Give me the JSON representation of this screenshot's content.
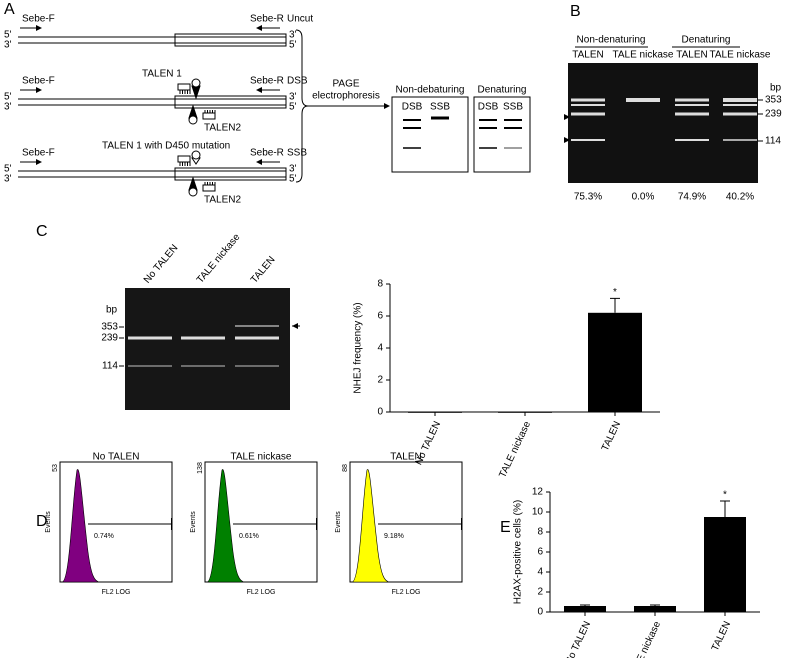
{
  "panel_labels": [
    "A",
    "B",
    "C",
    "D",
    "E"
  ],
  "panel_a": {
    "rows": [
      {
        "left_primer": "Sebe-F",
        "right_primer": "Sebe-R",
        "state": "Uncut",
        "ends": [
          "5'",
          "3'",
          "3'",
          "5'"
        ]
      },
      {
        "left_primer": "Sebe-F",
        "right_primer": "Sebe-R",
        "state": "DSB",
        "ends": [
          "5'",
          "3'",
          "3'",
          "5'"
        ],
        "talen1": "TALEN 1",
        "talen2": "TALEN2"
      },
      {
        "left_primer": "Sebe-F",
        "right_primer": "Sebe-R",
        "state": "SSB",
        "ends": [
          "5'",
          "3'",
          "3'",
          "5'"
        ],
        "talen1": "TALEN 1 with D450 mutation",
        "talen2": "TALEN2"
      }
    ],
    "step": [
      "PAGE",
      "electrophoresis"
    ],
    "gels": [
      {
        "title": "Non-debaturing",
        "lanes": [
          "DSB",
          "SSB"
        ]
      },
      {
        "title": "Denaturing",
        "lanes": [
          "DSB",
          "SSB"
        ]
      }
    ]
  },
  "panel_b": {
    "groups": [
      "Non-denaturing",
      "Denaturing"
    ],
    "lanes": [
      "TALEN",
      "TALE nickase",
      "TALEN",
      "TALE nickase"
    ],
    "size_unit": "bp",
    "sizes": [
      "353",
      "239",
      "114"
    ],
    "percentages": [
      "75.3%",
      "0.0%",
      "74.9%",
      "40.2%"
    ]
  },
  "panel_c_gel": {
    "lanes": [
      "No TALEN",
      "TALE nickase",
      "TALEN"
    ],
    "size_unit": "bp",
    "sizes": [
      "353",
      "239",
      "114"
    ]
  },
  "panel_d": {
    "y_label": "Events",
    "x_label": "FL2 LOG",
    "plots": [
      {
        "title": "No TALEN",
        "y_max": "53",
        "percent": "0.74%",
        "color": "#800080"
      },
      {
        "title": "TALE nickase",
        "y_max": "138",
        "percent": "0.61%",
        "color": "#008000"
      },
      {
        "title": "TALEN",
        "y_max": "88",
        "percent": "9.18%",
        "color": "#ffff00"
      }
    ]
  },
  "chart_data": [
    {
      "type": "bar",
      "y_label": "NHEJ frequency (%)",
      "categories": [
        "No TALEN",
        "TALE nickase",
        "TALEN"
      ],
      "values": [
        0,
        0,
        6.2
      ],
      "errors": [
        0,
        0,
        0.9
      ],
      "color": "#000000",
      "ylim": [
        0,
        8
      ],
      "yticks": [
        0,
        2,
        4,
        6,
        8
      ],
      "annotation": "*"
    },
    {
      "type": "bar",
      "y_label": "H2AX-positive cells (%)",
      "categories": [
        "No TALEN",
        "TALE nickase",
        "TALEN"
      ],
      "values": [
        0.6,
        0.6,
        9.5
      ],
      "errors": [
        0.1,
        0.1,
        1.6
      ],
      "color": "#000000",
      "ylim": [
        0,
        12
      ],
      "yticks": [
        0,
        2,
        4,
        6,
        8,
        10,
        12
      ],
      "annotation": "*"
    }
  ]
}
